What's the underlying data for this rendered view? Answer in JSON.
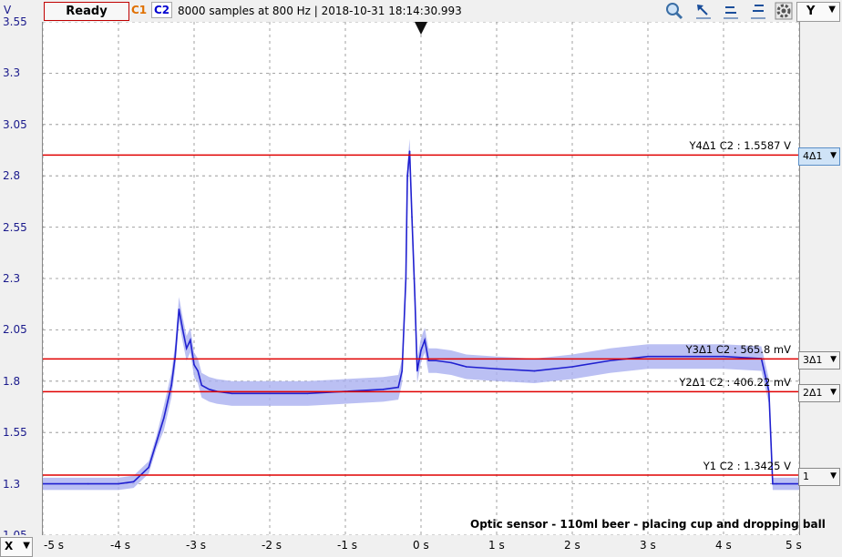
{
  "toolbar": {
    "y_unit": "V",
    "status": "Ready",
    "channel1": "C1",
    "channel2": "C2",
    "info": "8000 samples at 800 Hz | 2018-10-31 18:14:30.993",
    "y_button": "Y",
    "icons": [
      "zoom-icon",
      "cursor-arrow-icon",
      "cursor-h-icon",
      "cursor-h2-icon",
      "settings-icon"
    ]
  },
  "x_button": "X",
  "caption": "Optic sensor - 110ml beer - placing cup and dropping ball",
  "colors": {
    "trace": "#2020d0",
    "envelope": "#aab0f0",
    "cursor": "#e00000",
    "axis_text": "#1a1a8c"
  },
  "cursors": [
    {
      "button": "4Δ1",
      "label": "Y4Δ1 C2 : 1.5587 V",
      "value": 2.9012
    },
    {
      "button": "3Δ1",
      "label": "Y3Δ1 C2 : 565.8 mV",
      "value": 1.9083
    },
    {
      "button": "2Δ1",
      "label": "Y2Δ1 C2 : 406.22 mV",
      "value": 1.7487
    },
    {
      "button": "1",
      "label": "Y1 C2 : 1.3425 V",
      "value": 1.3425
    }
  ],
  "chart_data": {
    "type": "line",
    "title": "",
    "xlabel": "",
    "ylabel": "V",
    "xlim": [
      -5,
      5
    ],
    "ylim": [
      1.05,
      3.55
    ],
    "grid": true,
    "y_ticks": [
      "3.55",
      "3.3",
      "3.05",
      "2.8",
      "2.55",
      "2.3",
      "2.05",
      "1.8",
      "1.55",
      "1.3",
      "1.05"
    ],
    "x_ticks": [
      "-5 s",
      "-4 s",
      "-3 s",
      "-2 s",
      "-1 s",
      "0 s",
      "1 s",
      "2 s",
      "3 s",
      "4 s",
      "5 s"
    ],
    "series": [
      {
        "x": [
          -5.0,
          -4.4,
          -4.0,
          -3.8,
          -3.6,
          -3.5,
          -3.4,
          -3.3,
          -3.25,
          -3.2,
          -3.15,
          -3.1,
          -3.05,
          -3.0,
          -2.95,
          -2.9,
          -2.8,
          -2.7,
          -2.5,
          -2.0,
          -1.5,
          -1.0,
          -0.5,
          -0.3,
          -0.25,
          -0.2,
          -0.18,
          -0.15,
          -0.12,
          -0.08,
          -0.05,
          0.0,
          0.05,
          0.1,
          0.2,
          0.4,
          0.6,
          1.0,
          1.5,
          2.0,
          2.5,
          3.0,
          3.5,
          4.0,
          4.5,
          4.6,
          4.65,
          4.7,
          5.0
        ],
        "y": [
          1.3,
          1.3,
          1.3,
          1.31,
          1.38,
          1.5,
          1.62,
          1.78,
          1.92,
          2.15,
          2.05,
          1.96,
          2.0,
          1.88,
          1.85,
          1.78,
          1.76,
          1.75,
          1.74,
          1.74,
          1.74,
          1.75,
          1.76,
          1.77,
          1.85,
          2.3,
          2.8,
          2.92,
          2.6,
          2.2,
          1.85,
          1.95,
          2.0,
          1.9,
          1.9,
          1.89,
          1.87,
          1.86,
          1.85,
          1.87,
          1.9,
          1.92,
          1.92,
          1.92,
          1.91,
          1.75,
          1.3,
          1.3,
          1.3
        ]
      }
    ]
  }
}
